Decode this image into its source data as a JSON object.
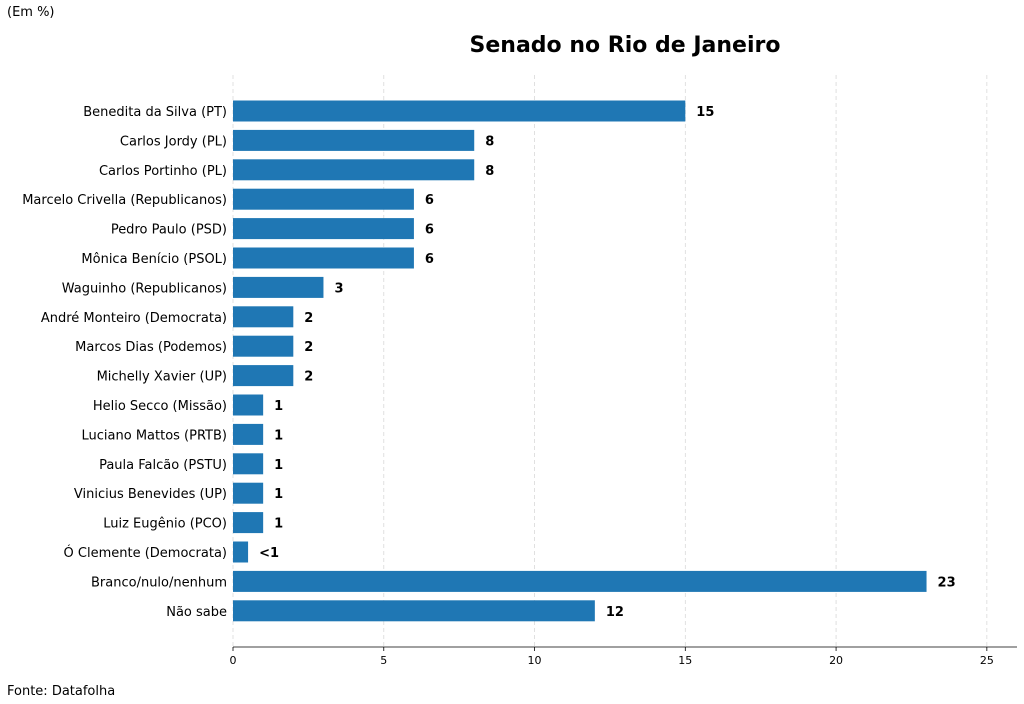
{
  "header": {
    "unit_note": "(Em %)"
  },
  "footer": {
    "source": "Fonte: Datafolha"
  },
  "chart_data": {
    "type": "bar",
    "orientation": "horizontal",
    "title": "Senado no Rio de Janeiro",
    "xlabel": "",
    "ylabel": "",
    "xlim": [
      0,
      26
    ],
    "xticks": [
      0,
      5,
      10,
      15,
      20,
      25
    ],
    "grid": true,
    "bar_color": "#1f77b4",
    "categories": [
      "Benedita da Silva (PT)",
      "Carlos Jordy (PL)",
      "Carlos Portinho (PL)",
      "Marcelo Crivella (Republicanos)",
      "Pedro Paulo (PSD)",
      "Mônica Benício (PSOL)",
      "Waguinho (Republicanos)",
      "André Monteiro (Democrata)",
      "Marcos Dias (Podemos)",
      "Michelly Xavier (UP)",
      "Helio Secco (Missão)",
      "Luciano Mattos (PRTB)",
      "Paula Falcão (PSTU)",
      "Vinicius Benevides (UP)",
      "Luiz Eugênio (PCO)",
      "Ó Clemente (Democrata)",
      "Branco/nulo/nenhum",
      "Não sabe"
    ],
    "values": [
      15,
      8,
      8,
      6,
      6,
      6,
      3,
      2,
      2,
      2,
      1,
      1,
      1,
      1,
      1,
      0.5,
      23,
      12
    ],
    "value_labels": [
      "15",
      "8",
      "8",
      "6",
      "6",
      "6",
      "3",
      "2",
      "2",
      "2",
      "1",
      "1",
      "1",
      "1",
      "1",
      "<1",
      "23",
      "12"
    ]
  }
}
